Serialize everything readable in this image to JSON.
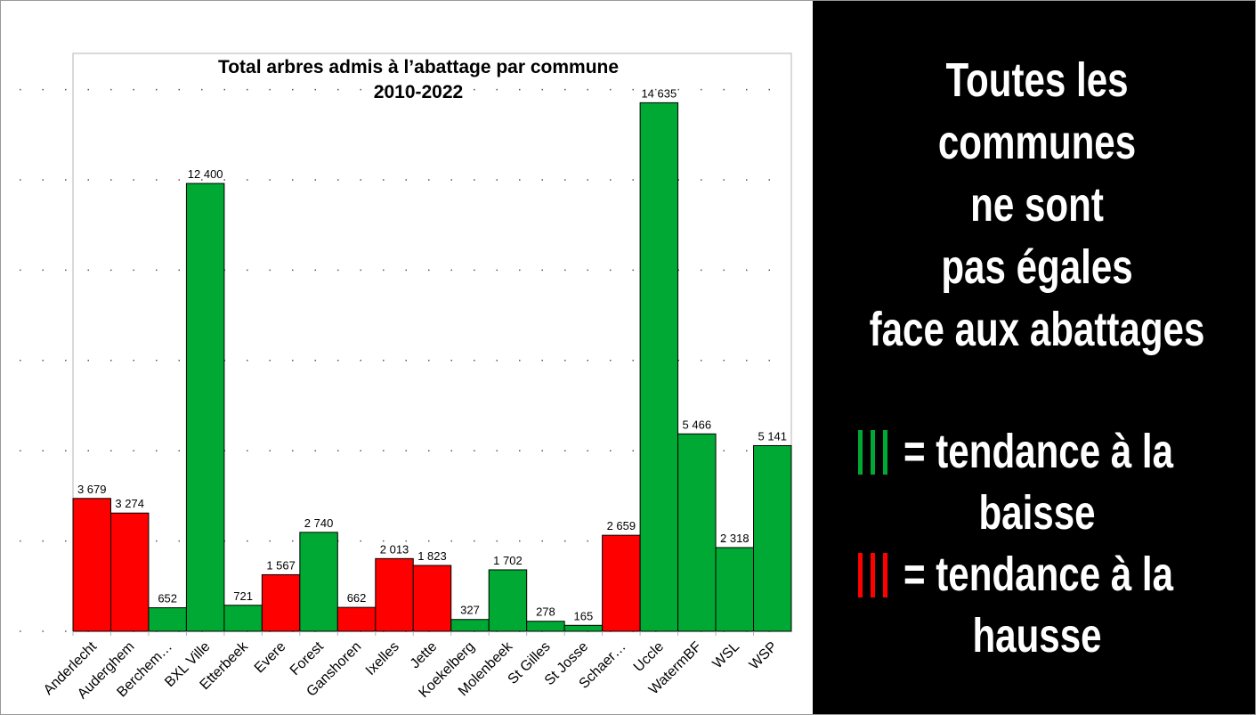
{
  "chart_data": {
    "type": "bar",
    "title": [
      "Total arbres admis à l’abattage par commune",
      "2010-2022"
    ],
    "categories": [
      "Anderlecht",
      "Auderghem",
      "Berchem…",
      "BXL Ville",
      "Etterbeek",
      "Evere",
      "Forest",
      "Ganshoren",
      "Ixelles",
      "Jette",
      "Koekelberg",
      "Molenbeek",
      "St Gilles",
      "St Josse",
      "Schaer…",
      "Uccle",
      "WatermBF",
      "WSL",
      "WSP"
    ],
    "values": [
      3679,
      3274,
      652,
      12400,
      721,
      1567,
      2740,
      662,
      2013,
      1823,
      327,
      1702,
      278,
      165,
      2659,
      14635,
      5466,
      2318,
      5141
    ],
    "value_labels": [
      "3 679",
      "3 274",
      "652",
      "12 400",
      "721",
      "1 567",
      "2 740",
      "662",
      "2 013",
      "1 823",
      "327",
      "1 702",
      "278",
      "165",
      "2 659",
      "14 635",
      "5 466",
      "2 318",
      "5 141"
    ],
    "colors": [
      "#ff0000",
      "#ff0000",
      "#00a933",
      "#00a933",
      "#00a933",
      "#ff0000",
      "#00a933",
      "#ff0000",
      "#ff0000",
      "#ff0000",
      "#00a933",
      "#00a933",
      "#00a933",
      "#00a933",
      "#ff0000",
      "#00a933",
      "#00a933",
      "#00a933",
      "#00a933"
    ],
    "ylim": [
      0,
      16000
    ],
    "yticks": [
      0,
      2500,
      5000,
      7500,
      10000,
      12500,
      15000
    ],
    "grid": true
  },
  "panel": {
    "heading": [
      "Toutes les",
      "communes",
      "ne sont",
      "pas égales",
      "face aux abattages"
    ],
    "legend": [
      {
        "color": "#00a933",
        "lines": [
          "= tendance à la",
          "baisse"
        ]
      },
      {
        "color": "#ff0000",
        "lines": [
          "= tendance à la",
          "hausse"
        ]
      }
    ]
  }
}
